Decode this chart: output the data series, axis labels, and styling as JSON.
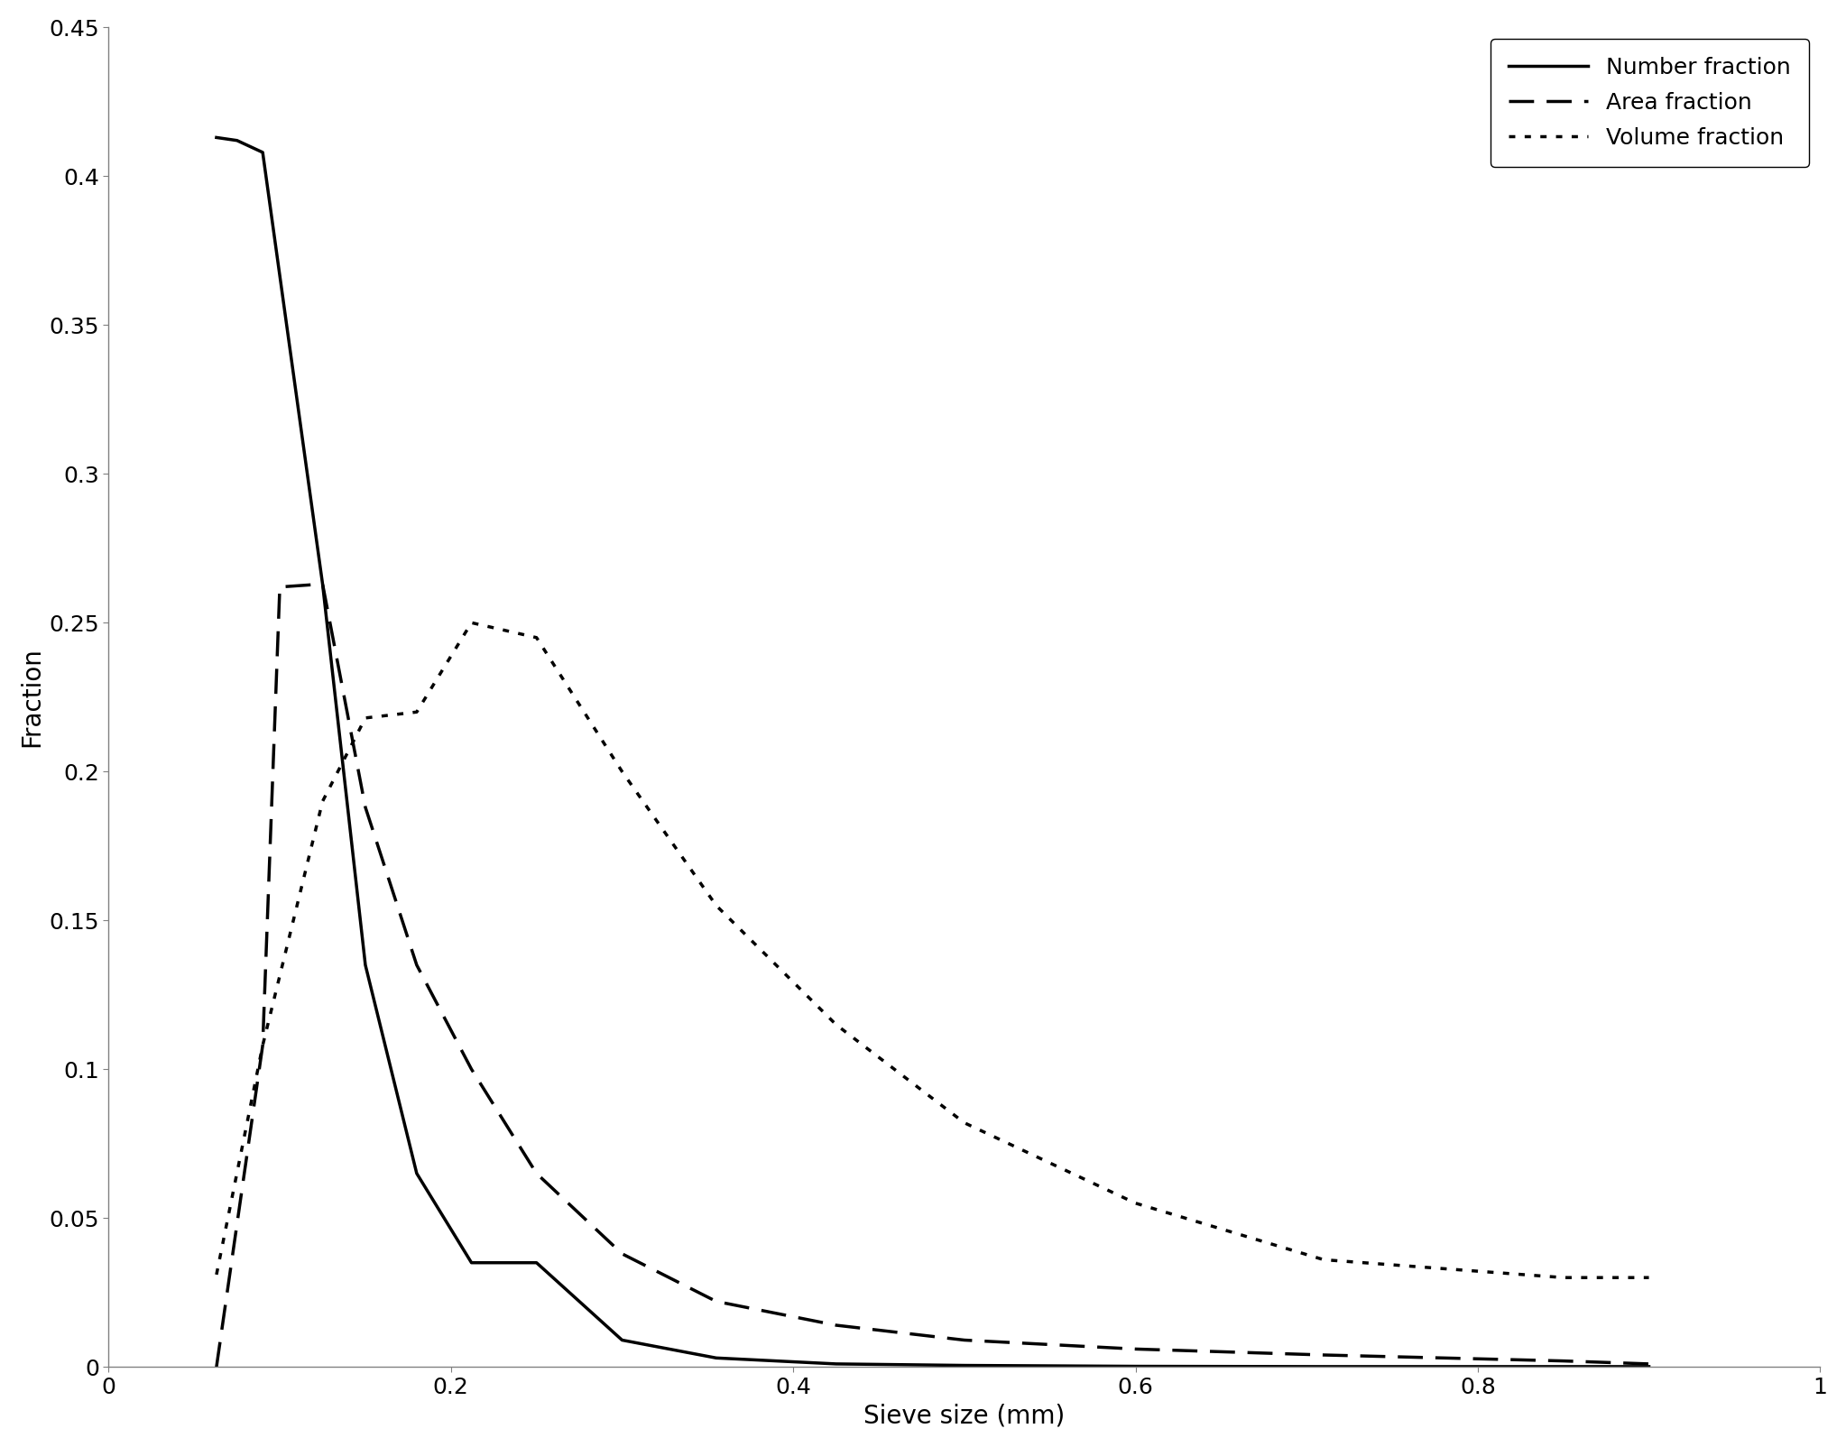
{
  "title": "",
  "xlabel": "Sieve size (mm)",
  "ylabel": "Fraction",
  "xlim": [
    0,
    1.0
  ],
  "ylim": [
    0,
    0.45
  ],
  "background_color": "#ffffff",
  "legend_labels": [
    "Number fraction",
    "Area fraction",
    "Volume fraction"
  ],
  "legend_linestyles": [
    "solid",
    "dashed",
    "dotted"
  ],
  "number_fraction_x": [
    0.063,
    0.075,
    0.09,
    0.125,
    0.15,
    0.18,
    0.212,
    0.25,
    0.3,
    0.355,
    0.425,
    0.5,
    0.6,
    0.71,
    0.85,
    0.9
  ],
  "number_fraction_y": [
    0.413,
    0.412,
    0.408,
    0.263,
    0.135,
    0.065,
    0.035,
    0.035,
    0.009,
    0.003,
    0.001,
    0.0005,
    0.0002,
    0.0001,
    0.0001,
    0.0001
  ],
  "area_fraction_x": [
    0.063,
    0.09,
    0.1,
    0.125,
    0.15,
    0.18,
    0.212,
    0.25,
    0.3,
    0.355,
    0.425,
    0.5,
    0.6,
    0.71,
    0.85,
    0.9
  ],
  "area_fraction_y": [
    0.0,
    0.108,
    0.262,
    0.263,
    0.188,
    0.135,
    0.1,
    0.065,
    0.038,
    0.022,
    0.014,
    0.009,
    0.006,
    0.004,
    0.002,
    0.001
  ],
  "volume_fraction_x": [
    0.063,
    0.09,
    0.125,
    0.15,
    0.18,
    0.212,
    0.25,
    0.3,
    0.355,
    0.425,
    0.5,
    0.6,
    0.71,
    0.85,
    0.9
  ],
  "volume_fraction_y": [
    0.031,
    0.108,
    0.19,
    0.218,
    0.22,
    0.25,
    0.245,
    0.2,
    0.155,
    0.115,
    0.082,
    0.055,
    0.036,
    0.03,
    0.03
  ],
  "linewidth": 2.5,
  "fontsize_label": 20,
  "fontsize_tick": 18,
  "fontsize_legend": 18,
  "xticks": [
    0,
    0.2,
    0.4,
    0.6,
    0.8,
    1.0
  ],
  "yticks": [
    0,
    0.05,
    0.1,
    0.15,
    0.2,
    0.25,
    0.3,
    0.35,
    0.4,
    0.45
  ]
}
